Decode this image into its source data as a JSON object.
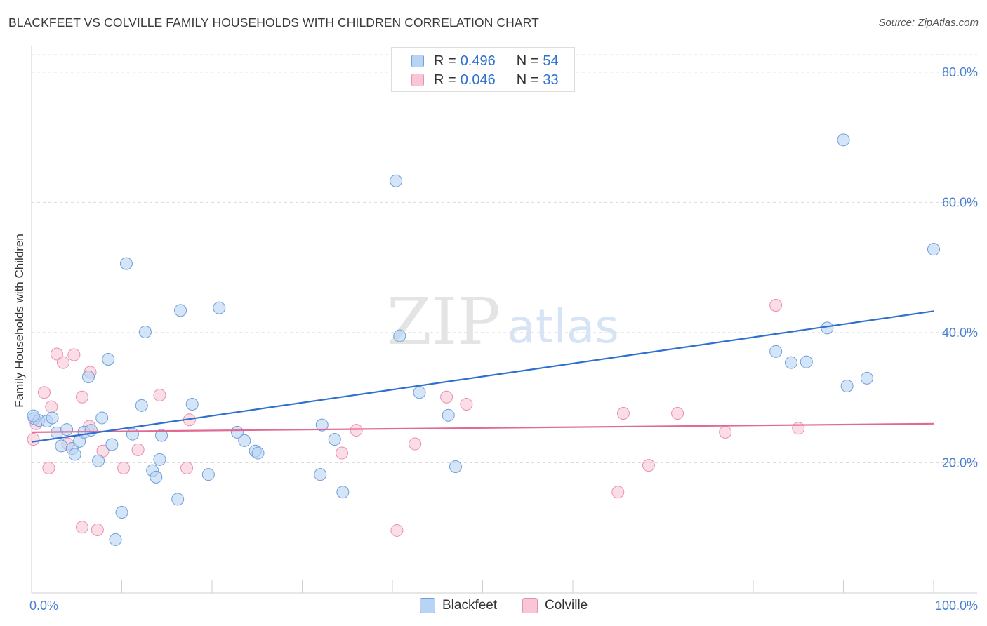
{
  "header": {
    "title": "BLACKFEET VS COLVILLE FAMILY HOUSEHOLDS WITH CHILDREN CORRELATION CHART",
    "source": "Source: ZipAtlas.com"
  },
  "watermark": {
    "zip": "ZIP",
    "atlas": "atlas"
  },
  "legend": {
    "rows": [
      {
        "r_label": "R =",
        "r_value": "0.496",
        "n_label": "N =",
        "n_value": "54"
      },
      {
        "r_label": "R =",
        "r_value": "0.046",
        "n_label": "N =",
        "n_value": "33"
      }
    ]
  },
  "colors": {
    "blackfeet_fill": "#b9d3f4",
    "blackfeet_stroke": "#6f9fdc",
    "blackfeet_line": "#2f6fd0",
    "colville_fill": "#f9c6d5",
    "colville_stroke": "#e98fae",
    "colville_line": "#e06a94"
  },
  "chart_data": {
    "type": "scatter",
    "title": "BLACKFEET VS COLVILLE FAMILY HOUSEHOLDS WITH CHILDREN CORRELATION CHART",
    "xlabel": "",
    "ylabel": "Family Households with Children",
    "xlim": [
      0,
      100
    ],
    "ylim": [
      0,
      83
    ],
    "x_tick_labels": [
      "0.0%",
      "100.0%"
    ],
    "y_ticks": [
      20,
      40,
      60,
      80
    ],
    "y_tick_labels": [
      "20.0%",
      "40.0%",
      "60.0%",
      "80.0%"
    ],
    "grid": true,
    "legend_position": "top-center",
    "series": [
      {
        "name": "Blackfeet",
        "r": 0.496,
        "n": 54,
        "trend": {
          "x": [
            0,
            100
          ],
          "y": [
            23.2,
            43.3
          ]
        },
        "points": [
          [
            0.3,
            26.8
          ],
          [
            0.8,
            26.5
          ],
          [
            1.7,
            26.4
          ],
          [
            2.3,
            26.9
          ],
          [
            2.8,
            24.6
          ],
          [
            3.3,
            22.6
          ],
          [
            3.9,
            25.1
          ],
          [
            4.5,
            22.2
          ],
          [
            4.8,
            21.3
          ],
          [
            5.3,
            23.3
          ],
          [
            5.8,
            24.7
          ],
          [
            6.3,
            33.2
          ],
          [
            6.6,
            25.0
          ],
          [
            7.4,
            20.3
          ],
          [
            7.8,
            26.9
          ],
          [
            8.5,
            35.9
          ],
          [
            8.9,
            22.8
          ],
          [
            9.3,
            8.2
          ],
          [
            10.0,
            12.4
          ],
          [
            10.5,
            50.6
          ],
          [
            11.2,
            24.4
          ],
          [
            12.2,
            28.8
          ],
          [
            12.6,
            40.1
          ],
          [
            13.4,
            18.8
          ],
          [
            13.8,
            17.8
          ],
          [
            14.2,
            20.5
          ],
          [
            14.4,
            24.2
          ],
          [
            16.2,
            14.4
          ],
          [
            16.5,
            43.4
          ],
          [
            17.8,
            29.0
          ],
          [
            19.6,
            18.2
          ],
          [
            20.8,
            43.8
          ],
          [
            22.8,
            24.7
          ],
          [
            23.6,
            23.4
          ],
          [
            24.8,
            21.8
          ],
          [
            25.1,
            21.5
          ],
          [
            32.0,
            18.2
          ],
          [
            32.2,
            25.8
          ],
          [
            33.6,
            23.6
          ],
          [
            34.5,
            15.5
          ],
          [
            40.4,
            63.3
          ],
          [
            40.8,
            39.5
          ],
          [
            43.0,
            30.8
          ],
          [
            46.2,
            27.3
          ],
          [
            47.0,
            19.4
          ],
          [
            82.5,
            37.1
          ],
          [
            84.2,
            35.4
          ],
          [
            85.9,
            35.5
          ],
          [
            88.2,
            40.7
          ],
          [
            90.0,
            69.6
          ],
          [
            90.4,
            31.8
          ],
          [
            92.6,
            33.0
          ],
          [
            100.0,
            52.8
          ],
          [
            0.2,
            27.2
          ]
        ]
      },
      {
        "name": "Colville",
        "r": 0.046,
        "n": 33,
        "trend": {
          "x": [
            0,
            100
          ],
          "y": [
            24.7,
            26.0
          ]
        },
        "points": [
          [
            0.2,
            23.6
          ],
          [
            0.5,
            26.0
          ],
          [
            1.4,
            30.8
          ],
          [
            1.9,
            19.2
          ],
          [
            2.2,
            28.6
          ],
          [
            2.8,
            36.7
          ],
          [
            3.5,
            35.4
          ],
          [
            4.0,
            22.9
          ],
          [
            4.7,
            36.6
          ],
          [
            5.6,
            30.1
          ],
          [
            5.6,
            10.1
          ],
          [
            6.4,
            25.6
          ],
          [
            6.5,
            33.9
          ],
          [
            7.3,
            9.7
          ],
          [
            7.9,
            21.8
          ],
          [
            10.2,
            19.2
          ],
          [
            11.8,
            22.0
          ],
          [
            14.2,
            30.4
          ],
          [
            17.2,
            19.2
          ],
          [
            17.5,
            26.6
          ],
          [
            34.4,
            21.5
          ],
          [
            36.0,
            25.0
          ],
          [
            40.5,
            9.6
          ],
          [
            42.5,
            22.9
          ],
          [
            46.0,
            30.1
          ],
          [
            48.2,
            29.0
          ],
          [
            65.0,
            15.5
          ],
          [
            65.6,
            27.6
          ],
          [
            68.4,
            19.6
          ],
          [
            71.6,
            27.6
          ],
          [
            76.9,
            24.7
          ],
          [
            82.5,
            44.2
          ],
          [
            85.0,
            25.3
          ]
        ]
      }
    ]
  },
  "bottom_legend": {
    "items": [
      "Blackfeet",
      "Colville"
    ]
  }
}
